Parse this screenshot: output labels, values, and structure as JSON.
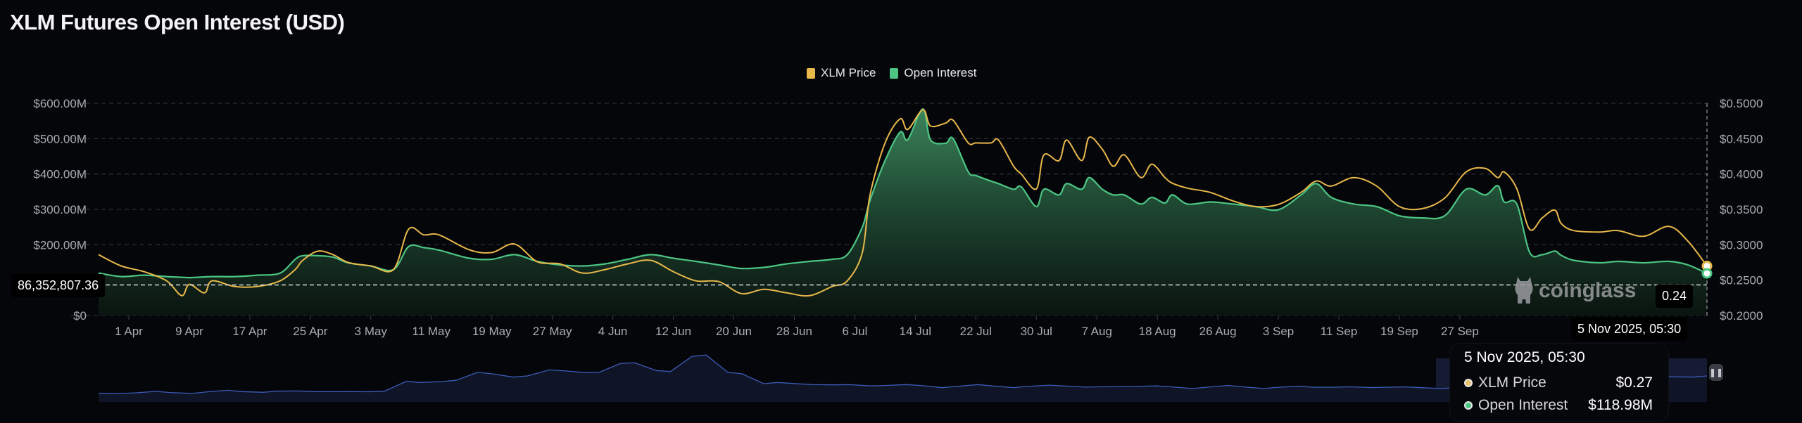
{
  "title": "XLM Futures Open Interest (USD)",
  "legend": [
    {
      "label": "XLM Price",
      "color": "#e8b84a"
    },
    {
      "label": "Open Interest",
      "color": "#4cc583"
    }
  ],
  "crosshair": {
    "left_value": "86,352,807.36",
    "right_value": "0.24",
    "date_label": "5 Nov 2025, 05:30"
  },
  "tooltip": {
    "date": "5 Nov 2025, 05:30",
    "rows": [
      {
        "label": "XLM Price",
        "value": "$0.27",
        "color": "#e8c36a"
      },
      {
        "label": "Open Interest",
        "value": "$118.98M",
        "color": "#4cc583"
      }
    ]
  },
  "watermark": "coinglass",
  "navigator_pause_icon": "pause-icon",
  "chart_data": {
    "type": "line",
    "title": "XLM Futures Open Interest (USD)",
    "left_axis": {
      "ticks": [
        "$0",
        "$200.00M",
        "$300.00M",
        "$400.00M",
        "$500.00M",
        "$600.00M"
      ],
      "tick_values": [
        0,
        200,
        300,
        400,
        500,
        600
      ],
      "unit": "M USD",
      "range": [
        0,
        600
      ]
    },
    "right_axis": {
      "ticks": [
        "$0.2000",
        "$0.2500",
        "$0.3000",
        "$0.3500",
        "$0.4000",
        "$0.4500",
        "$0.5000"
      ],
      "tick_values": [
        0.2,
        0.25,
        0.3,
        0.35,
        0.4,
        0.45,
        0.5
      ],
      "range": [
        0.2,
        0.5
      ]
    },
    "x_ticks": [
      "1 Apr",
      "9 Apr",
      "17 Apr",
      "25 Apr",
      "3 May",
      "11 May",
      "19 May",
      "27 May",
      "4 Jun",
      "12 Jun",
      "20 Jun",
      "28 Jun",
      "6 Jul",
      "14 Jul",
      "22 Jul",
      "30 Jul",
      "7 Aug",
      "18 Aug",
      "26 Aug",
      "3 Sep",
      "11 Sep",
      "19 Sep",
      "27 Sep"
    ],
    "year": 2025,
    "grid": true,
    "legend_position": "top-center",
    "series": [
      {
        "name": "Open Interest",
        "key": "oi",
        "axis": "left",
        "color": "#4cc583",
        "area": true
      },
      {
        "name": "XLM Price",
        "key": "price",
        "axis": "right",
        "color": "#e8b84a"
      }
    ],
    "points": [
      {
        "x": "2025-03-28",
        "oi": 120,
        "price": 0.286
      },
      {
        "x": "2025-03-31",
        "oi": 110,
        "price": 0.27
      },
      {
        "x": "2025-04-03",
        "oi": 114,
        "price": 0.262
      },
      {
        "x": "2025-04-06",
        "oi": 110,
        "price": 0.249
      },
      {
        "x": "2025-04-08",
        "oi": 108,
        "price": 0.228
      },
      {
        "x": "2025-04-09",
        "oi": 107,
        "price": 0.244
      },
      {
        "x": "2025-04-11",
        "oi": 109,
        "price": 0.232
      },
      {
        "x": "2025-04-12",
        "oi": 110,
        "price": 0.249
      },
      {
        "x": "2025-04-15",
        "oi": 110,
        "price": 0.241
      },
      {
        "x": "2025-04-18",
        "oi": 114,
        "price": 0.241
      },
      {
        "x": "2025-04-21",
        "oi": 120,
        "price": 0.249
      },
      {
        "x": "2025-04-23",
        "oi": 159,
        "price": 0.265
      },
      {
        "x": "2025-04-24",
        "oi": 169,
        "price": 0.278
      },
      {
        "x": "2025-04-26",
        "oi": 169,
        "price": 0.291
      },
      {
        "x": "2025-04-28",
        "oi": 165,
        "price": 0.286
      },
      {
        "x": "2025-04-30",
        "oi": 149,
        "price": 0.275
      },
      {
        "x": "2025-05-03",
        "oi": 140,
        "price": 0.27
      },
      {
        "x": "2025-05-06",
        "oi": 130,
        "price": 0.265
      },
      {
        "x": "2025-05-08",
        "oi": 195,
        "price": 0.322
      },
      {
        "x": "2025-05-10",
        "oi": 192,
        "price": 0.314
      },
      {
        "x": "2025-05-12",
        "oi": 185,
        "price": 0.314
      },
      {
        "x": "2025-05-16",
        "oi": 162,
        "price": 0.293
      },
      {
        "x": "2025-05-19",
        "oi": 159,
        "price": 0.289
      },
      {
        "x": "2025-05-22",
        "oi": 172,
        "price": 0.301
      },
      {
        "x": "2025-05-25",
        "oi": 153,
        "price": 0.276
      },
      {
        "x": "2025-05-28",
        "oi": 143,
        "price": 0.273
      },
      {
        "x": "2025-05-31",
        "oi": 140,
        "price": 0.26
      },
      {
        "x": "2025-06-03",
        "oi": 146,
        "price": 0.265
      },
      {
        "x": "2025-06-06",
        "oi": 159,
        "price": 0.273
      },
      {
        "x": "2025-06-09",
        "oi": 172,
        "price": 0.278
      },
      {
        "x": "2025-06-12",
        "oi": 162,
        "price": 0.262
      },
      {
        "x": "2025-06-15",
        "oi": 153,
        "price": 0.249
      },
      {
        "x": "2025-06-18",
        "oi": 143,
        "price": 0.248
      },
      {
        "x": "2025-06-21",
        "oi": 133,
        "price": 0.231
      },
      {
        "x": "2025-06-24",
        "oi": 136,
        "price": 0.237
      },
      {
        "x": "2025-06-27",
        "oi": 146,
        "price": 0.232
      },
      {
        "x": "2025-06-30",
        "oi": 153,
        "price": 0.228
      },
      {
        "x": "2025-07-03",
        "oi": 159,
        "price": 0.241
      },
      {
        "x": "2025-07-05",
        "oi": 172,
        "price": 0.249
      },
      {
        "x": "2025-07-07",
        "oi": 250,
        "price": 0.289
      },
      {
        "x": "2025-07-08",
        "oi": 325,
        "price": 0.37
      },
      {
        "x": "2025-07-10",
        "oi": 438,
        "price": 0.444
      },
      {
        "x": "2025-07-12",
        "oi": 519,
        "price": 0.478
      },
      {
        "x": "2025-07-13",
        "oi": 497,
        "price": 0.463
      },
      {
        "x": "2025-07-15",
        "oi": 584,
        "price": 0.491
      },
      {
        "x": "2025-07-16",
        "oi": 497,
        "price": 0.468
      },
      {
        "x": "2025-07-18",
        "oi": 487,
        "price": 0.472
      },
      {
        "x": "2025-07-19",
        "oi": 500,
        "price": 0.476
      },
      {
        "x": "2025-07-21",
        "oi": 406,
        "price": 0.444
      },
      {
        "x": "2025-07-22",
        "oi": 396,
        "price": 0.444
      },
      {
        "x": "2025-07-24",
        "oi": 380,
        "price": 0.444
      },
      {
        "x": "2025-07-25",
        "oi": 373,
        "price": 0.448
      },
      {
        "x": "2025-07-27",
        "oi": 357,
        "price": 0.411
      },
      {
        "x": "2025-07-28",
        "oi": 364,
        "price": 0.4
      },
      {
        "x": "2025-07-30",
        "oi": 308,
        "price": 0.379
      },
      {
        "x": "2025-07-31",
        "oi": 357,
        "price": 0.427
      },
      {
        "x": "2025-08-02",
        "oi": 341,
        "price": 0.419
      },
      {
        "x": "2025-08-03",
        "oi": 373,
        "price": 0.448
      },
      {
        "x": "2025-08-05",
        "oi": 357,
        "price": 0.419
      },
      {
        "x": "2025-08-06",
        "oi": 390,
        "price": 0.452
      },
      {
        "x": "2025-08-08",
        "oi": 357,
        "price": 0.435
      },
      {
        "x": "2025-08-10",
        "oi": 341,
        "price": 0.411
      },
      {
        "x": "2025-08-12",
        "oi": 341,
        "price": 0.427
      },
      {
        "x": "2025-08-15",
        "oi": 315,
        "price": 0.395
      },
      {
        "x": "2025-08-17",
        "oi": 334,
        "price": 0.414
      },
      {
        "x": "2025-08-19",
        "oi": 318,
        "price": 0.395
      },
      {
        "x": "2025-08-20",
        "oi": 341,
        "price": 0.387
      },
      {
        "x": "2025-08-22",
        "oi": 315,
        "price": 0.38
      },
      {
        "x": "2025-08-25",
        "oi": 321,
        "price": 0.374
      },
      {
        "x": "2025-08-28",
        "oi": 315,
        "price": 0.362
      },
      {
        "x": "2025-08-31",
        "oi": 308,
        "price": 0.354
      },
      {
        "x": "2025-09-03",
        "oi": 299,
        "price": 0.357
      },
      {
        "x": "2025-09-06",
        "oi": 341,
        "price": 0.374
      },
      {
        "x": "2025-09-08",
        "oi": 373,
        "price": 0.39
      },
      {
        "x": "2025-09-10",
        "oi": 334,
        "price": 0.383
      },
      {
        "x": "2025-09-13",
        "oi": 315,
        "price": 0.395
      },
      {
        "x": "2025-09-16",
        "oi": 308,
        "price": 0.383
      },
      {
        "x": "2025-09-19",
        "oi": 282,
        "price": 0.354
      },
      {
        "x": "2025-09-22",
        "oi": 276,
        "price": 0.351
      },
      {
        "x": "2025-09-25",
        "oi": 282,
        "price": 0.366
      },
      {
        "x": "2025-09-28",
        "oi": 357,
        "price": 0.403
      },
      {
        "x": "2025-10-01",
        "oi": 341,
        "price": 0.408
      },
      {
        "x": "2025-10-03",
        "oi": 367,
        "price": 0.395
      },
      {
        "x": "2025-10-04",
        "oi": 321,
        "price": 0.403
      },
      {
        "x": "2025-10-06",
        "oi": 315,
        "price": 0.379
      },
      {
        "x": "2025-10-08",
        "oi": 179,
        "price": 0.322
      },
      {
        "x": "2025-10-10",
        "oi": 172,
        "price": 0.338
      },
      {
        "x": "2025-10-12",
        "oi": 182,
        "price": 0.349
      },
      {
        "x": "2025-10-13",
        "oi": 170,
        "price": 0.33
      },
      {
        "x": "2025-10-15",
        "oi": 156,
        "price": 0.32
      },
      {
        "x": "2025-10-19",
        "oi": 149,
        "price": 0.318
      },
      {
        "x": "2025-10-22",
        "oi": 153,
        "price": 0.32
      },
      {
        "x": "2025-10-26",
        "oi": 149,
        "price": 0.312
      },
      {
        "x": "2025-10-30",
        "oi": 153,
        "price": 0.326
      },
      {
        "x": "2025-11-02",
        "oi": 143,
        "price": 0.305
      },
      {
        "x": "2025-11-05",
        "oi": 118.98,
        "price": 0.27
      }
    ],
    "navigator": {
      "color": "#3c5bb8",
      "values": [
        0.1,
        0.11,
        0.12,
        0.13,
        0.14,
        0.15,
        0.14,
        0.14,
        0.15,
        0.35,
        0.4,
        0.55,
        0.5,
        0.62,
        0.58,
        0.8,
        0.6,
        0.98,
        0.55,
        0.35,
        0.3,
        0.3,
        0.28,
        0.28,
        0.26,
        0.27,
        0.26,
        0.27,
        0.25,
        0.26,
        0.25,
        0.24,
        0.25,
        0.24,
        0.24,
        0.25,
        0.24,
        0.23,
        0.24,
        0.25,
        0.55,
        0.6,
        0.55,
        0.5,
        0.48,
        0.5
      ]
    }
  }
}
